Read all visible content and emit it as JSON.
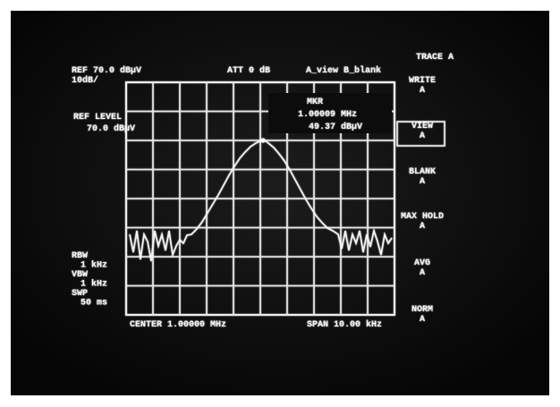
{
  "header": {
    "ref": "REF 70.0 dBµV",
    "scale": "10dB/",
    "att": "ATT 0 dB",
    "traces": "A_view B_blank"
  },
  "ref_level": {
    "title": "REF LEVEL",
    "value": "70.0 dBµV"
  },
  "marker": {
    "title": "MKR",
    "freq": "1.00009  MHz",
    "level": "49.37 dBµV"
  },
  "settings": [
    "RBW",
    "1 kHz",
    "VBW",
    "1 kHz",
    "SWP",
    "50 ms"
  ],
  "footer": {
    "center": "CENTER 1.00000 MHz",
    "span": "SPAN 10.00 kHz"
  },
  "softkeys": [
    {
      "lines": [
        "TRACE A"
      ]
    },
    {
      "lines": [
        "WRITE",
        "A"
      ]
    },
    {
      "lines": [
        "VIEW",
        "A"
      ]
    },
    {
      "lines": [
        "BLANK",
        "A"
      ]
    },
    {
      "lines": [
        "MAX HOLD",
        "A"
      ]
    },
    {
      "lines": [
        "AVG",
        "A"
      ]
    },
    {
      "lines": [
        "NORM",
        "A"
      ]
    }
  ]
}
